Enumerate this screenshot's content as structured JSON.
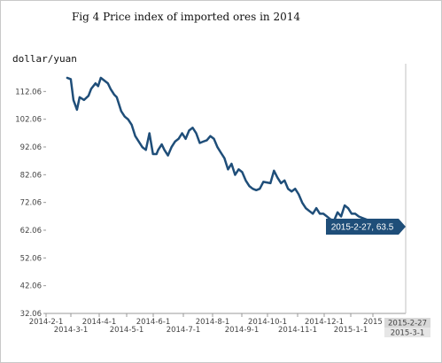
{
  "chart_data": {
    "type": "line",
    "title": "Fig 4 Price index of imported ores in 2014",
    "ylabel": "dollar/yuan",
    "xlabel": "",
    "ylim": [
      32.06,
      122.06
    ],
    "yticks": [
      "112.06",
      "102.06",
      "92.06",
      "82.06",
      "72.06",
      "62.06",
      "52.06",
      "42.06",
      "32.06"
    ],
    "xticks_upper": [
      "2014-2-1",
      "2014-4-1",
      "2014-6-1",
      "2014-8-1",
      "2014-10-1",
      "2014-12-1",
      "2015"
    ],
    "xticks_lower": [
      "2014-3-1",
      "2014-5-1",
      "2014-7-1",
      "2014-9-1",
      "2014-11-1",
      "2015-1-1"
    ],
    "grid": false,
    "line_color": "#1f4e79",
    "tooltip": {
      "text": "2015-2-27, 63.5",
      "color": "#1f4e79",
      "x": "2015-02-27",
      "y": 63.5
    },
    "crosshair_labels": [
      "2015-2-27",
      "2015-3-1"
    ],
    "series": [
      {
        "x": [
          "2014-02-21",
          "2014-02-25",
          "2014-02-28",
          "2014-03-04",
          "2014-03-07",
          "2014-03-12",
          "2014-03-17",
          "2014-03-20",
          "2014-03-25",
          "2014-03-28",
          "2014-03-31",
          "2014-04-04",
          "2014-04-08",
          "2014-04-11",
          "2014-04-15",
          "2014-04-18",
          "2014-04-23",
          "2014-04-27",
          "2014-05-01",
          "2014-05-05",
          "2014-05-09",
          "2014-05-13",
          "2014-05-17",
          "2014-05-21",
          "2014-05-25",
          "2014-05-29",
          "2014-06-02",
          "2014-06-04",
          "2014-06-08",
          "2014-06-11",
          "2014-06-15",
          "2014-06-19",
          "2014-06-23",
          "2014-06-27",
          "2014-07-01",
          "2014-07-05",
          "2014-07-09",
          "2014-07-13",
          "2014-07-17",
          "2014-07-21",
          "2014-07-25",
          "2014-07-29",
          "2014-08-02",
          "2014-08-06",
          "2014-08-10",
          "2014-08-14",
          "2014-08-18",
          "2014-08-22",
          "2014-08-26",
          "2014-08-30",
          "2014-09-03",
          "2014-09-07",
          "2014-09-11",
          "2014-09-15",
          "2014-09-19",
          "2014-09-23",
          "2014-09-27",
          "2014-10-01",
          "2014-10-09",
          "2014-10-13",
          "2014-10-17",
          "2014-10-21",
          "2014-10-25",
          "2014-10-29",
          "2014-11-02",
          "2014-11-06",
          "2014-11-10",
          "2014-11-14",
          "2014-11-18",
          "2014-11-22",
          "2014-11-26",
          "2014-11-30",
          "2014-12-04",
          "2014-12-08",
          "2014-12-12",
          "2014-12-16",
          "2014-12-20",
          "2014-12-24",
          "2014-12-28",
          "2015-01-01",
          "2015-01-05",
          "2015-01-09",
          "2015-01-13",
          "2015-01-17",
          "2015-01-21",
          "2015-01-25",
          "2015-01-29",
          "2015-02-02",
          "2015-02-06",
          "2015-02-10",
          "2015-02-14",
          "2015-02-18",
          "2015-02-22",
          "2015-02-27"
        ],
        "values": [
          117,
          116.5,
          109,
          105.5,
          110,
          109,
          110.5,
          113,
          115,
          114,
          117,
          116,
          115,
          113,
          111,
          110,
          105,
          103,
          102,
          100,
          96,
          94,
          92,
          91,
          97,
          89.5,
          89.5,
          91,
          93,
          91,
          89,
          92,
          94,
          95,
          97,
          95,
          98,
          99,
          97,
          93.5,
          94,
          94.5,
          96,
          95,
          92,
          90,
          88,
          84,
          86,
          82,
          84,
          83,
          80,
          78,
          77,
          76.5,
          77,
          79.5,
          79,
          83.5,
          81,
          79,
          80,
          77,
          76,
          77,
          75,
          72,
          70,
          69,
          68,
          70,
          68,
          68,
          67,
          66,
          65.5,
          68.5,
          67,
          71,
          70,
          68,
          68,
          67,
          66.5,
          66,
          65.5,
          65,
          64.5,
          64,
          64,
          63.8,
          63.6,
          63.5
        ]
      }
    ]
  }
}
